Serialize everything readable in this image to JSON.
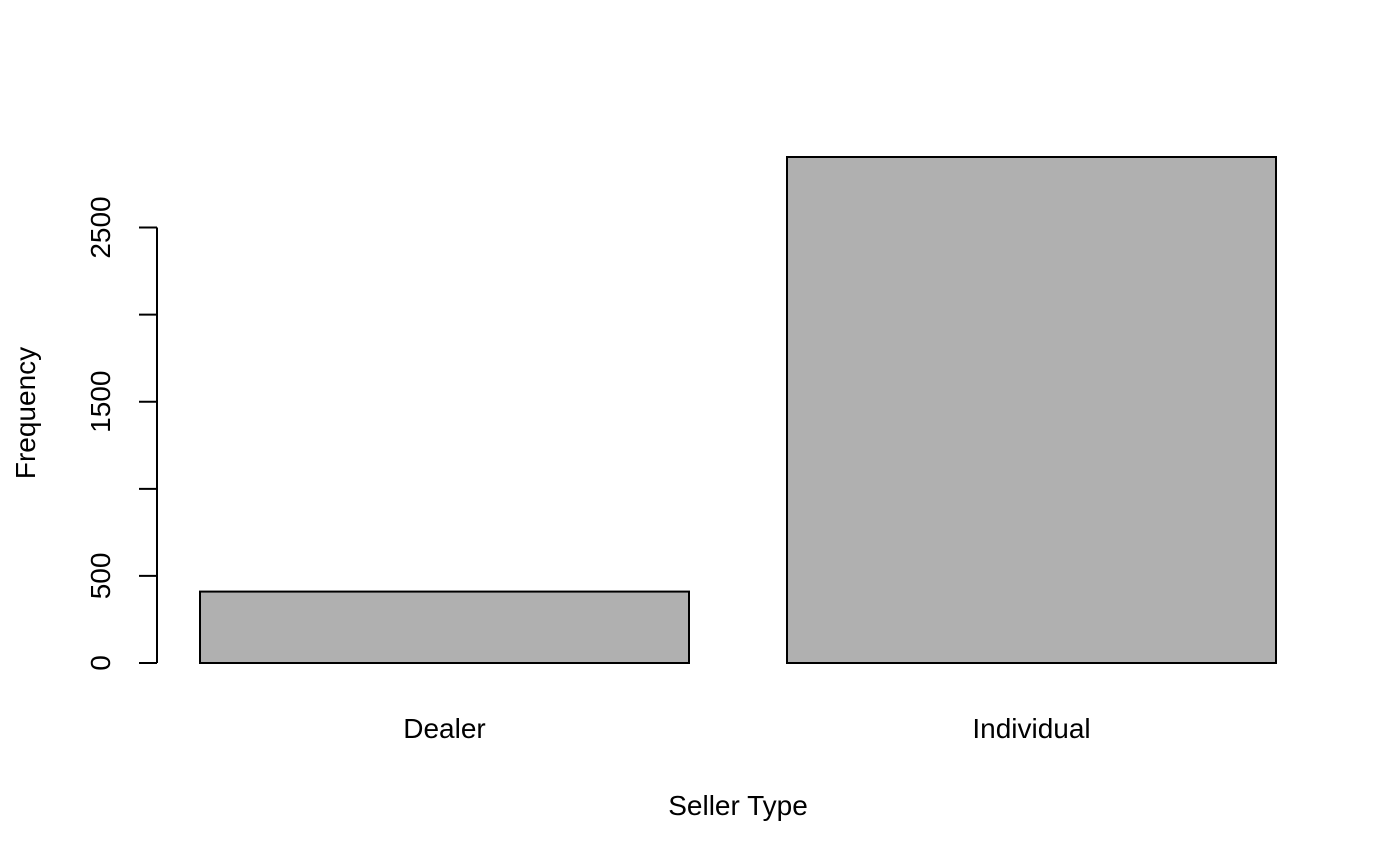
{
  "chart_data": {
    "type": "bar",
    "categories": [
      "Dealer",
      "Individual"
    ],
    "values": [
      410,
      2905
    ],
    "title": "",
    "xlabel": "Seller Type",
    "ylabel": "Frequency",
    "ylim": [
      0,
      2905
    ],
    "yticks": [
      0,
      500,
      1000,
      1500,
      2000,
      2500
    ],
    "ytick_labels": [
      "0",
      "500",
      "",
      "1500",
      "",
      "2500"
    ],
    "bar_fill": "#b0b0b0",
    "bar_stroke": "#000000",
    "grid": false,
    "legend": "none"
  }
}
